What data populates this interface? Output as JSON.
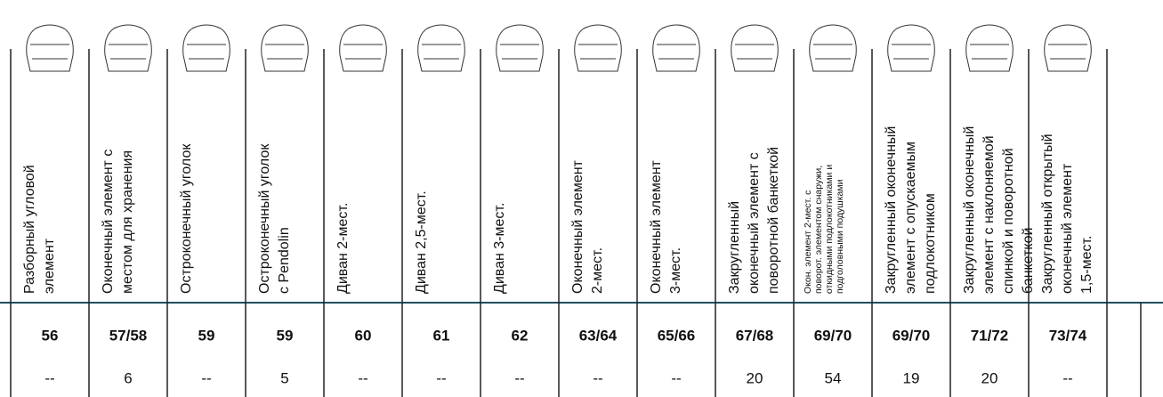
{
  "table": {
    "columns": [
      {
        "label": [
          "Разборный угловой",
          "элемент"
        ],
        "page": "56",
        "qty": "--"
      },
      {
        "label": [
          "Оконечный элемент с",
          "местом для хранения"
        ],
        "page": "57/58",
        "qty": 6
      },
      {
        "label": [
          "Остроконечный уголок"
        ],
        "page": "59",
        "qty": "--"
      },
      {
        "label": [
          "Остроконечный уголок",
          "с Pendolin"
        ],
        "page": "59",
        "qty": 5
      },
      {
        "label": [
          "Диван 2-мест."
        ],
        "page": "60",
        "qty": "--"
      },
      {
        "label": [
          "Диван 2,5-мест."
        ],
        "page": "61",
        "qty": "--"
      },
      {
        "label": [
          "Диван 3-мест."
        ],
        "page": "62",
        "qty": "--"
      },
      {
        "label": [
          "Оконечный элемент",
          "2-мест."
        ],
        "page": "63/64",
        "qty": "--"
      },
      {
        "label": [
          "Оконечный элемент",
          "3-мест."
        ],
        "page": "65/66",
        "qty": "--"
      },
      {
        "label": [
          "Закругленный",
          "оконечный элемент с",
          "поворотной банкеткой"
        ],
        "page": "67/68",
        "qty": 20
      },
      {
        "label": [
          "Окон. элемент 2-мест. с",
          "поворот. элементом снаружи,",
          "откидными  подлокотниками и",
          "подголовными подушками"
        ],
        "page": "69/70",
        "qty": 54
      },
      {
        "label": [
          "Закругленный оконечный",
          "элемент с опускаемым",
          "подлокотником"
        ],
        "page": "69/70",
        "qty": 19
      },
      {
        "label": [
          "Закругленный оконечный",
          "элемент с наклоняемой",
          "спинкой и поворотной",
          "банкеткой"
        ],
        "page": "71/72",
        "qty": 20
      },
      {
        "label": [
          "Закругленный открытый",
          "оконечный элемент",
          "1,5-мест."
        ],
        "page": "73/74",
        "qty": "--"
      }
    ]
  }
}
